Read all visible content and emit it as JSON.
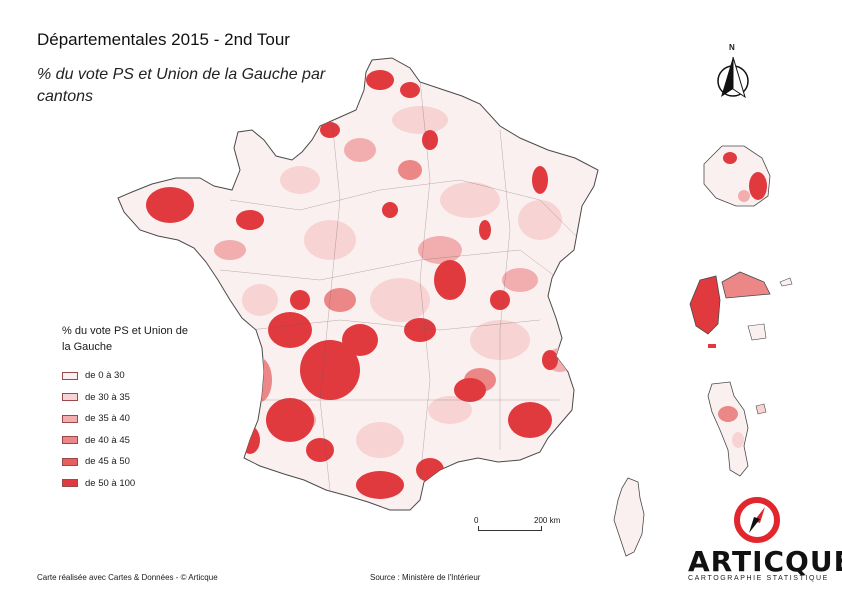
{
  "title": "Départementales 2015 - 2nd Tour",
  "subtitle": "% du vote PS et Union de la Gauche par cantons",
  "legend": {
    "title": "% du vote PS et Union de la Gauche",
    "classes": [
      {
        "label": "de 0 à 30",
        "color": "#fbf0f0"
      },
      {
        "label": "de 30 à 35",
        "color": "#f7d3d3"
      },
      {
        "label": "de 35 à 40",
        "color": "#f2aeae"
      },
      {
        "label": "de 40 à 45",
        "color": "#ec8787"
      },
      {
        "label": "de 45 à 50",
        "color": "#e65e5e"
      },
      {
        "label": "de 50 à 100",
        "color": "#e03a3f"
      }
    ]
  },
  "scale_bar": {
    "start": "0",
    "end": "200 km"
  },
  "north_label": "N",
  "footer_left": "Carte réalisée avec Cartes & Données - © Articque",
  "footer_source": "Source : Ministère de l'Intérieur",
  "brand": {
    "name": "ARTICQUE",
    "tagline": "CARTOGRAPHIE STATISTIQUE",
    "accent": "#e2262d"
  },
  "colors": {
    "border": "#4a4a4a",
    "base": "#fbf0f0"
  }
}
